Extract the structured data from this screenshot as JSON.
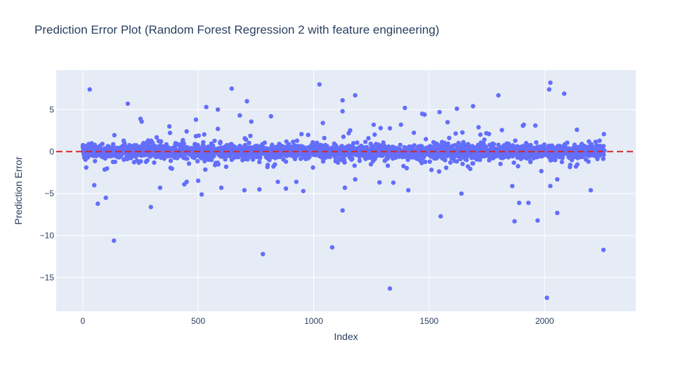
{
  "chart_data": {
    "type": "scatter",
    "title": "Prediction Error Plot (Random Forest Regression 2 with feature engineering)",
    "xlabel": "Index",
    "ylabel": "Prediction Error",
    "xlim": [
      -115,
      2395
    ],
    "ylim": [
      -19,
      9.7
    ],
    "x_ticks": [
      0,
      500,
      1000,
      1500,
      2000
    ],
    "x_tick_labels": [
      "0",
      "500",
      "1000",
      "1500",
      "2000"
    ],
    "y_ticks": [
      -15,
      -10,
      -5,
      0,
      5
    ],
    "y_tick_labels": [
      "−15",
      "−10",
      "−5",
      "0",
      "5"
    ],
    "grid": true,
    "legend": "none",
    "n_points": 2260,
    "reference_line": {
      "y": 0,
      "style": "dashed",
      "color": "#d62728"
    },
    "marker_color": "#636efa",
    "plot_background": "#e5ecf6",
    "outliers": [
      {
        "x": 30,
        "y": 7.4
      },
      {
        "x": 15,
        "y": -1.9
      },
      {
        "x": 50,
        "y": -4.0
      },
      {
        "x": 65,
        "y": -6.2
      },
      {
        "x": 100,
        "y": -5.5
      },
      {
        "x": 135,
        "y": -10.6
      },
      {
        "x": 195,
        "y": 5.7
      },
      {
        "x": 250,
        "y": 3.9
      },
      {
        "x": 295,
        "y": -6.6
      },
      {
        "x": 335,
        "y": -4.3
      },
      {
        "x": 375,
        "y": 3.0
      },
      {
        "x": 440,
        "y": -3.9
      },
      {
        "x": 450,
        "y": -3.6
      },
      {
        "x": 450,
        "y": 2.4
      },
      {
        "x": 490,
        "y": 3.8
      },
      {
        "x": 515,
        "y": -5.1
      },
      {
        "x": 535,
        "y": 5.3
      },
      {
        "x": 585,
        "y": 5.0
      },
      {
        "x": 600,
        "y": -4.3
      },
      {
        "x": 645,
        "y": 7.5
      },
      {
        "x": 680,
        "y": 4.3
      },
      {
        "x": 700,
        "y": -4.6
      },
      {
        "x": 765,
        "y": -4.5
      },
      {
        "x": 780,
        "y": -12.2
      },
      {
        "x": 815,
        "y": 4.2
      },
      {
        "x": 845,
        "y": -3.6
      },
      {
        "x": 880,
        "y": -4.4
      },
      {
        "x": 925,
        "y": -3.6
      },
      {
        "x": 955,
        "y": -4.7
      },
      {
        "x": 1025,
        "y": 8.0
      },
      {
        "x": 1040,
        "y": 3.4
      },
      {
        "x": 1080,
        "y": -11.4
      },
      {
        "x": 1125,
        "y": 6.1
      },
      {
        "x": 1125,
        "y": 4.8
      },
      {
        "x": 1125,
        "y": -7.0
      },
      {
        "x": 1135,
        "y": -4.3
      },
      {
        "x": 1180,
        "y": 6.7
      },
      {
        "x": 1180,
        "y": -3.3
      },
      {
        "x": 1260,
        "y": 3.2
      },
      {
        "x": 1290,
        "y": 2.8
      },
      {
        "x": 1330,
        "y": -16.3
      },
      {
        "x": 1345,
        "y": -3.7
      },
      {
        "x": 1395,
        "y": 5.2
      },
      {
        "x": 1410,
        "y": -4.6
      },
      {
        "x": 1470,
        "y": 4.5
      },
      {
        "x": 1480,
        "y": 4.4
      },
      {
        "x": 1545,
        "y": 4.7
      },
      {
        "x": 1550,
        "y": -7.7
      },
      {
        "x": 1580,
        "y": 3.5
      },
      {
        "x": 1620,
        "y": 5.1
      },
      {
        "x": 1640,
        "y": -5.0
      },
      {
        "x": 1690,
        "y": 5.4
      },
      {
        "x": 1800,
        "y": 6.7
      },
      {
        "x": 1860,
        "y": -4.1
      },
      {
        "x": 1870,
        "y": -8.3
      },
      {
        "x": 1890,
        "y": -6.1
      },
      {
        "x": 1910,
        "y": 3.2
      },
      {
        "x": 1930,
        "y": -6.1
      },
      {
        "x": 1960,
        "y": 3.1
      },
      {
        "x": 1970,
        "y": -8.2
      },
      {
        "x": 2010,
        "y": -17.4
      },
      {
        "x": 2020,
        "y": 7.4
      },
      {
        "x": 2025,
        "y": 8.2
      },
      {
        "x": 2025,
        "y": -4.1
      },
      {
        "x": 2055,
        "y": -7.3
      },
      {
        "x": 2055,
        "y": -3.3
      },
      {
        "x": 2085,
        "y": 6.9
      },
      {
        "x": 2140,
        "y": 2.6
      },
      {
        "x": 2200,
        "y": -4.6
      },
      {
        "x": 2255,
        "y": -11.7
      }
    ]
  }
}
